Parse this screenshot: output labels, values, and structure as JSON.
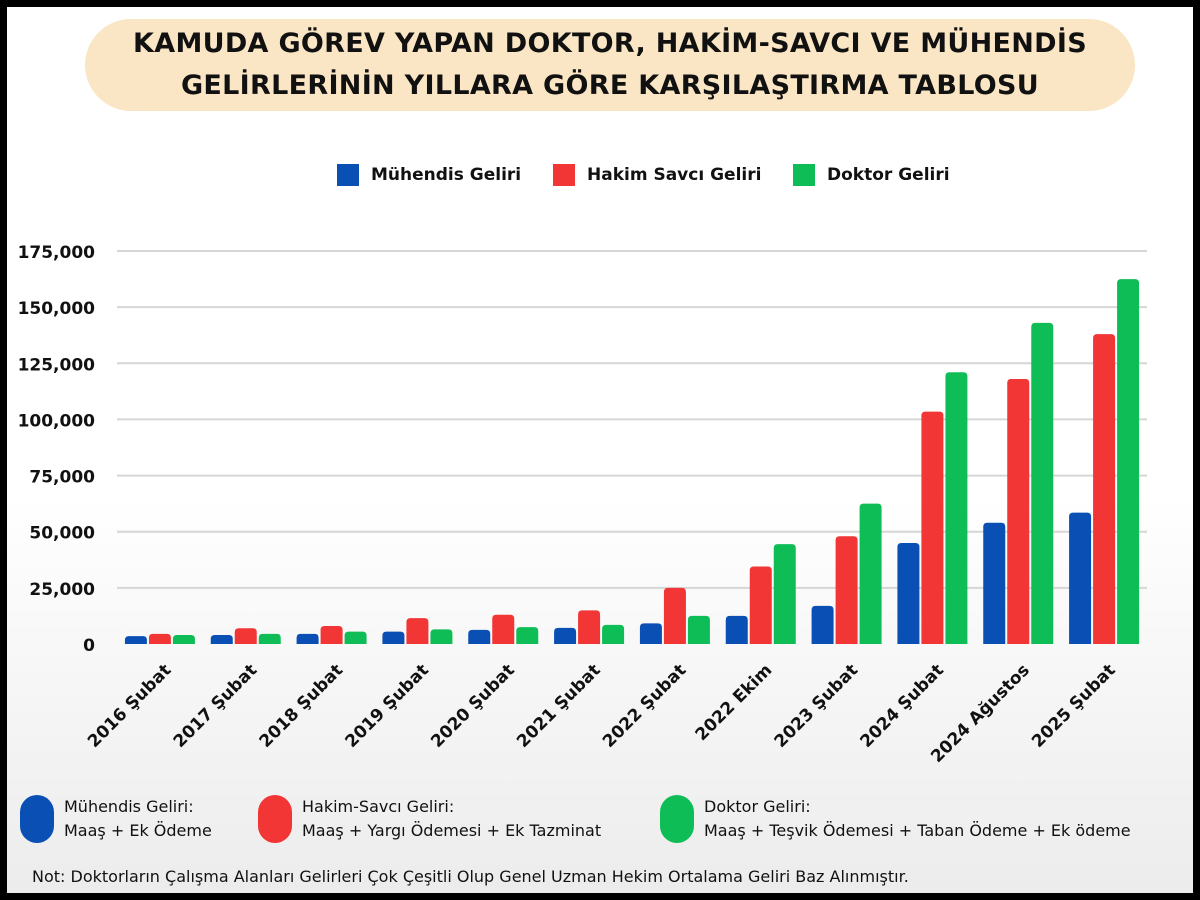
{
  "title_line1": "KAMUDA GÖREV YAPAN DOKTOR, HAKİM-SAVCI VE MÜHENDİS",
  "title_line2": "GELİRLERİNİN YILLARA GÖRE KARŞILAŞTIRMA TABLOSU",
  "colors": {
    "engineer": "#0a4fb4",
    "judge": "#f23535",
    "doctor": "#0fbd57",
    "title_bg": "#fae6c4"
  },
  "chart_data": {
    "type": "bar",
    "title": "KAMUDA GÖREV YAPAN DOKTOR, HAKİM-SAVCI VE MÜHENDİS GELİRLERİNİN YILLARA GÖRE KARŞILAŞTIRMA TABLOSU",
    "xlabel": "",
    "ylabel": "",
    "ylim": [
      0,
      175000
    ],
    "yticks": [
      "175,000",
      "150,000",
      "125,000",
      "100,000",
      "75,000",
      "50,000",
      "25,000",
      "0"
    ],
    "ytick_values": [
      175000,
      150000,
      125000,
      100000,
      75000,
      50000,
      25000,
      0
    ],
    "grid": true,
    "legend_position": "top",
    "categories": [
      "2016 Şubat",
      "2017 Şubat",
      "2018 Şubat",
      "2019 Şubat",
      "2020 Şubat",
      "2021 Şubat",
      "2022 Şubat",
      "2022 Ekim",
      "2023 Şubat",
      "2024 Şubat",
      "2024 Ağustos",
      "2025 Şubat"
    ],
    "series": [
      {
        "name": "Mühendis Geliri",
        "color": "#0a4fb4",
        "values": [
          3500,
          4000,
          4500,
          5500,
          6300,
          7200,
          9200,
          12500,
          17000,
          45000,
          54000,
          58500
        ]
      },
      {
        "name": "Hakim Savcı Geliri",
        "color": "#f23535",
        "values": [
          4500,
          7000,
          8000,
          11500,
          13000,
          15000,
          25000,
          34500,
          48000,
          103500,
          118000,
          138000
        ]
      },
      {
        "name": "Doktor Geliri",
        "color": "#0fbd57",
        "values": [
          4000,
          4500,
          5500,
          6500,
          7500,
          8500,
          12500,
          44500,
          62500,
          121000,
          143000,
          162500
        ]
      }
    ]
  },
  "notes": [
    {
      "line1": "Mühendis Geliri:",
      "line2": "Maaş  +  Ek Ödeme"
    },
    {
      "line1": "Hakim-Savcı Geliri:",
      "line2": "Maaş + Yargı Ödemesi + Ek Tazminat"
    },
    {
      "line1": "Doktor Geliri:",
      "line2": "Maaş + Teşvik Ödemesi + Taban Ödeme + Ek ödeme"
    }
  ],
  "footnote": "Not: Doktorların Çalışma Alanları Gelirleri Çok Çeşitli Olup Genel Uzman Hekim Ortalama Geliri Baz Alınmıştır."
}
